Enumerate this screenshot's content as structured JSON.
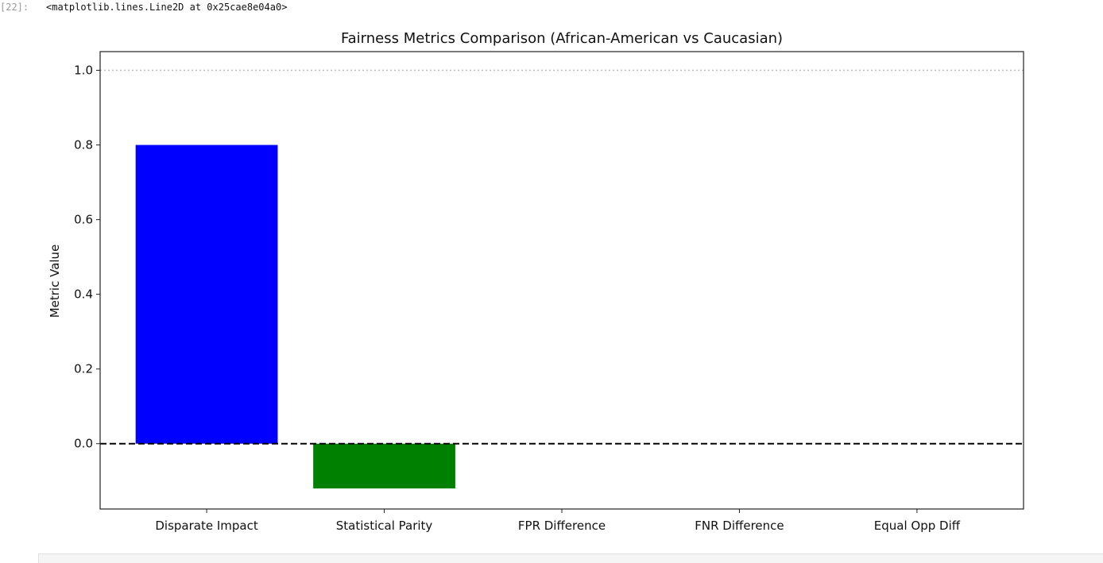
{
  "cell": {
    "prompt": "[22]:",
    "output_repr": "<matplotlib.lines.Line2D at 0x25cae8e04a0>"
  },
  "chart_data": {
    "type": "bar",
    "title": "Fairness Metrics Comparison (African-American vs Caucasian)",
    "xlabel": "",
    "ylabel": "Metric Value",
    "categories": [
      "Disparate Impact",
      "Statistical Parity",
      "FPR Difference",
      "FNR Difference",
      "Equal Opp Diff"
    ],
    "values": [
      0.8,
      -0.12,
      0.0,
      0.0,
      0.0
    ],
    "colors": [
      "#0000ff",
      "#008000",
      "#ff0000",
      "#800080",
      "#ffa500"
    ],
    "ylim": [
      -0.175,
      1.05
    ],
    "yticks": [
      0.0,
      0.2,
      0.4,
      0.6,
      0.8,
      1.0
    ],
    "ytick_labels": [
      "0.0",
      "0.2",
      "0.4",
      "0.6",
      "0.8",
      "1.0"
    ],
    "hlines": [
      {
        "y": 0.0,
        "color": "#000000",
        "style": "dashed"
      },
      {
        "y": 1.0,
        "color": "#bbbbbb",
        "style": "dotted"
      }
    ],
    "grid": false
  }
}
